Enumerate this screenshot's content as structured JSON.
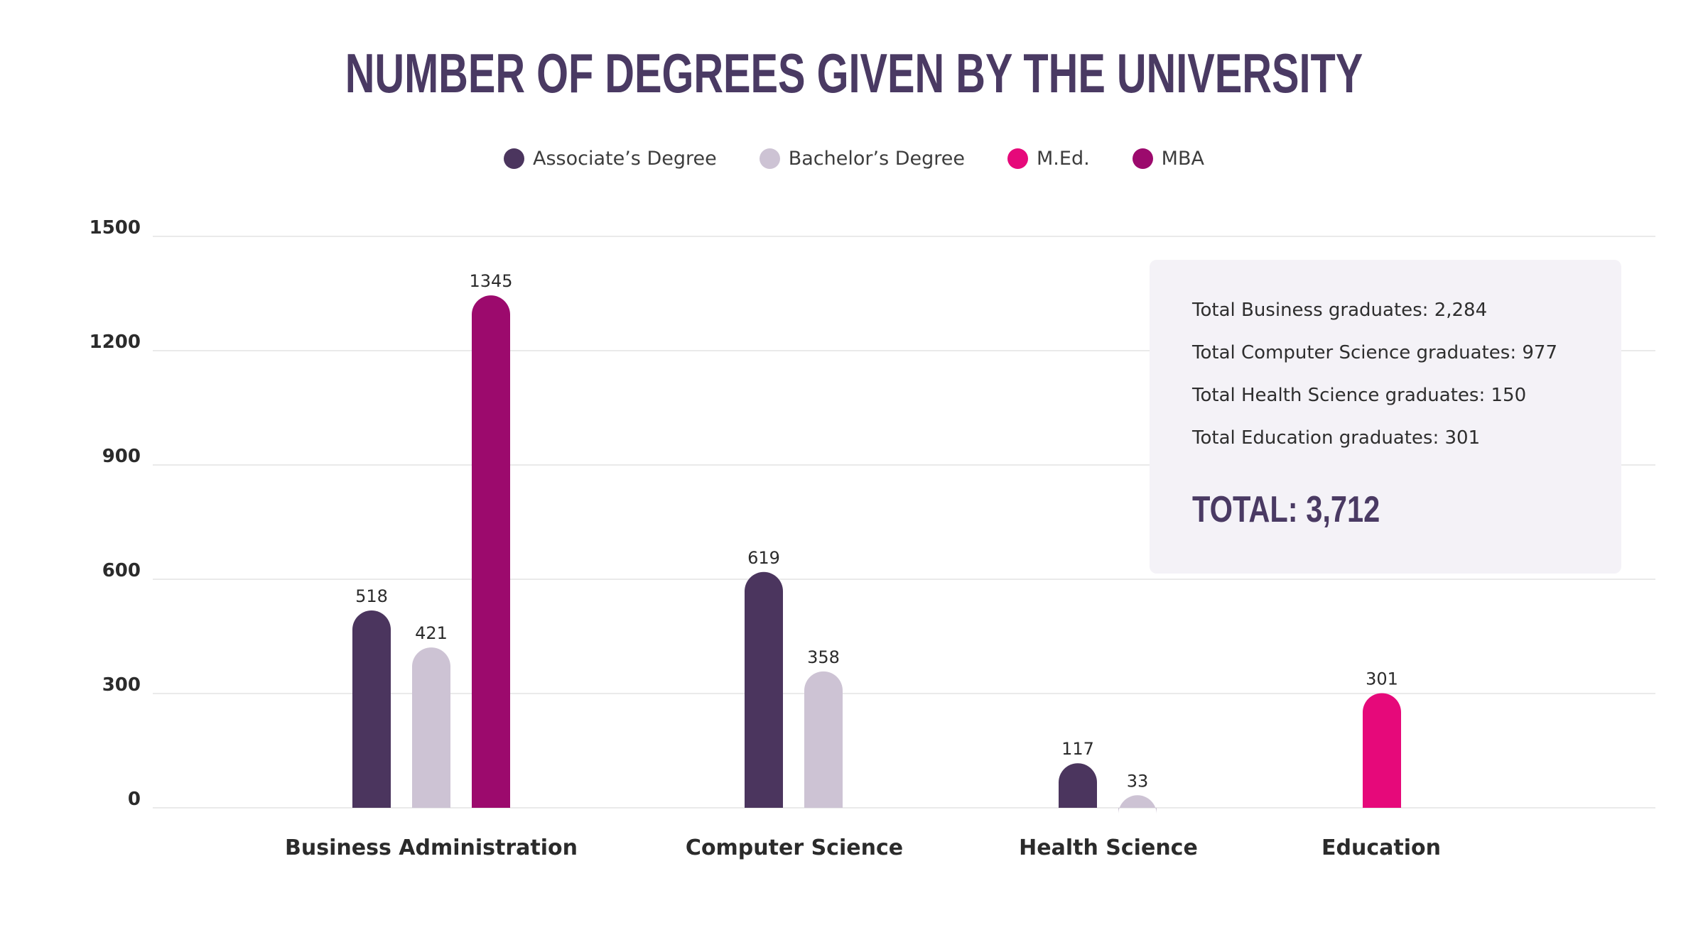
{
  "chart_data": {
    "type": "bar",
    "title": "NUMBER OF DEGREES GIVEN BY THE UNIVERSITY",
    "xlabel": "",
    "ylabel": "",
    "ylim": [
      0,
      1500
    ],
    "yticks": [
      "0",
      "300",
      "600",
      "900",
      "1200",
      "1500"
    ],
    "ytick_values": [
      0,
      300,
      600,
      900,
      1200,
      1500
    ],
    "categories": [
      "Business Administration",
      "Computer Science",
      "Health Science",
      "Education"
    ],
    "series": [
      {
        "name": "Associate’s Degree",
        "color": "#4b355e",
        "values": [
          518,
          619,
          117,
          null
        ]
      },
      {
        "name": "Bachelor’s Degree",
        "color": "#cdc3d4",
        "values": [
          421,
          358,
          33,
          null
        ]
      },
      {
        "name": "M.Ed.",
        "color": "#e6097a",
        "values": [
          null,
          null,
          null,
          301
        ]
      },
      {
        "name": "MBA",
        "color": "#9c0a6d",
        "values": [
          1345,
          null,
          null,
          null
        ]
      }
    ],
    "data_labels": {
      "Business Administration": [
        "518",
        "421",
        "1345"
      ],
      "Computer Science": [
        "619",
        "358"
      ],
      "Health Science": [
        "117",
        "33"
      ],
      "Education": [
        "301"
      ]
    },
    "legend_position": "top-center",
    "grid": true
  },
  "summary": {
    "lines": [
      "Total Business graduates: 2,284",
      "Total Computer Science graduates: 977",
      "Total Health Science graduates: 150",
      "Total Education graduates: 301"
    ],
    "total": "TOTAL: 3,712"
  },
  "colors": {
    "title": "#4a3a63",
    "grid": "#e4e4e4",
    "box_bg": "#f4f2f7"
  }
}
